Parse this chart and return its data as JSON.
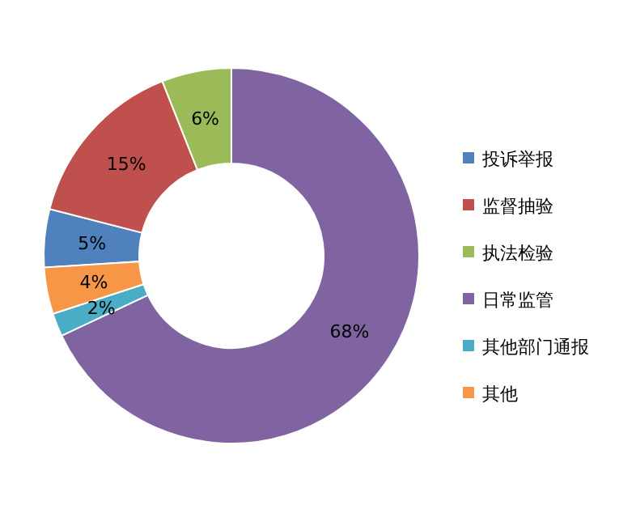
{
  "chart_data": {
    "type": "donut",
    "categories": [
      "投诉举报",
      "监督抽验",
      "执法检验",
      "日常监管",
      "其他部门通报",
      "其他"
    ],
    "values": [
      5,
      15,
      6,
      68,
      2,
      4
    ],
    "colors": [
      "#4f81bd",
      "#c0504d",
      "#9bbb59",
      "#8064a2",
      "#4bacc6",
      "#f79646"
    ],
    "value_labels": [
      "5%",
      "15%",
      "6%",
      "68%",
      "2%",
      "4%"
    ],
    "legend": "right"
  }
}
